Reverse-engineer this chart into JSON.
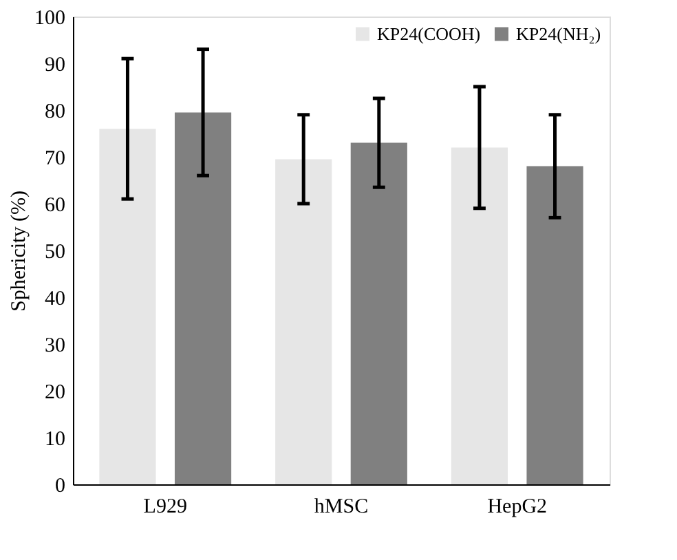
{
  "chart_data": {
    "type": "bar",
    "ylabel": "Sphericity (%)",
    "categories": [
      "L929",
      "hMSC",
      "HepG2"
    ],
    "series": [
      {
        "name": "KP24(COOH)",
        "color": "#e6e6e6",
        "values": [
          76,
          69.5,
          72
        ],
        "errors": [
          15,
          9.5,
          13
        ]
      },
      {
        "name": "KP24(NH₂)",
        "color": "#808080",
        "values": [
          79.5,
          73,
          68
        ],
        "errors": [
          13.5,
          9.5,
          11
        ]
      }
    ],
    "ylim": [
      0,
      100
    ],
    "yticks": [
      0,
      10,
      20,
      30,
      40,
      50,
      60,
      70,
      80,
      90,
      100
    ],
    "grid": false,
    "legend": "top right"
  }
}
